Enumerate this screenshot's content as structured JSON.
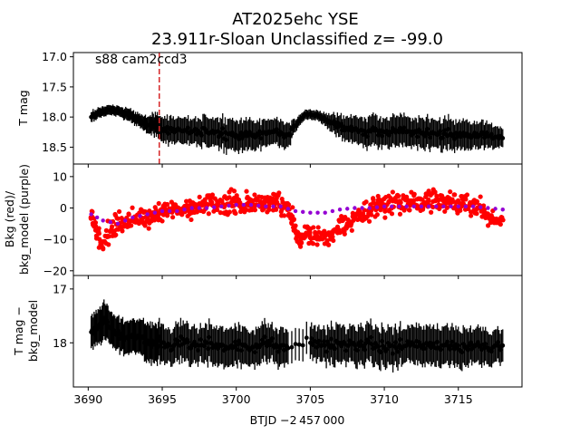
{
  "figure": {
    "title_line1": "AT2025ehc  YSE",
    "title_line2": "23.911r-Sloan Unclassified z= -99.0",
    "annotation": "s88 cam2ccd3",
    "shared_xlabel": "BTJD −2 457 000"
  },
  "chart_data": [
    {
      "type": "scatter",
      "panel": "top",
      "ylabel": "T mag",
      "y_inverted": true,
      "xlim": [
        3689.0,
        3719.3
      ],
      "ylim": [
        18.78,
        16.93
      ],
      "xticks": [
        3690,
        3695,
        3700,
        3705,
        3710,
        3715
      ],
      "yticks": [
        17.0,
        17.5,
        18.0,
        18.5
      ],
      "ytick_labels": [
        "17.0",
        "17.5",
        "18.0",
        "18.5"
      ],
      "vline": {
        "x": 3694.8,
        "color": "#d62728",
        "style": "dashed"
      },
      "series": [
        {
          "color": "#000000",
          "error_bars": true,
          "x": [
            3690.2,
            3690.6,
            3691.0,
            3691.4,
            3691.8,
            3692.2,
            3692.6,
            3693.0,
            3693.4,
            3693.8,
            3694.2,
            3694.6,
            3695.0,
            3695.5,
            3696.0,
            3696.5,
            3697.0,
            3697.5,
            3698.0,
            3698.5,
            3699.0,
            3699.5,
            3700.0,
            3700.5,
            3701.0,
            3701.5,
            3702.0,
            3702.5,
            3703.0,
            3703.5,
            3704.0,
            3704.5,
            3705.0,
            3705.5,
            3706.0,
            3706.5,
            3707.0,
            3707.5,
            3708.0,
            3708.5,
            3709.0,
            3709.5,
            3710.0,
            3710.5,
            3711.0,
            3711.5,
            3712.0,
            3712.5,
            3713.0,
            3713.5,
            3714.0,
            3714.5,
            3715.0,
            3715.5,
            3716.0,
            3716.5,
            3717.0,
            3717.5,
            3718.0
          ],
          "y": [
            18.0,
            17.95,
            17.9,
            17.88,
            17.9,
            17.92,
            17.95,
            18.0,
            18.05,
            18.1,
            18.12,
            18.15,
            18.2,
            18.2,
            18.22,
            18.22,
            18.25,
            18.25,
            18.25,
            18.27,
            18.28,
            18.28,
            18.3,
            18.3,
            18.3,
            18.3,
            18.28,
            18.25,
            18.25,
            18.3,
            18.15,
            18.0,
            17.95,
            17.97,
            18.05,
            18.1,
            18.15,
            18.18,
            18.2,
            18.22,
            18.22,
            18.22,
            18.25,
            18.25,
            18.25,
            18.25,
            18.27,
            18.27,
            18.28,
            18.28,
            18.28,
            18.28,
            18.3,
            18.3,
            18.3,
            18.3,
            18.32,
            18.33,
            18.35
          ],
          "yerr": [
            0.08,
            0.08,
            0.08,
            0.08,
            0.08,
            0.08,
            0.1,
            0.1,
            0.1,
            0.12,
            0.15,
            0.18,
            0.2,
            0.22,
            0.2,
            0.22,
            0.2,
            0.22,
            0.25,
            0.22,
            0.25,
            0.25,
            0.25,
            0.25,
            0.25,
            0.22,
            0.22,
            0.2,
            0.22,
            0.2,
            0.1,
            0.08,
            0.08,
            0.08,
            0.1,
            0.15,
            0.18,
            0.2,
            0.22,
            0.22,
            0.25,
            0.25,
            0.22,
            0.25,
            0.25,
            0.25,
            0.22,
            0.25,
            0.25,
            0.22,
            0.25,
            0.25,
            0.22,
            0.25,
            0.2,
            0.22,
            0.2,
            0.18,
            0.15
          ]
        }
      ]
    },
    {
      "type": "scatter",
      "panel": "middle",
      "ylabel_line1": "Bkg (red)/",
      "ylabel_line2": "bkg_model (purple)",
      "xlim": [
        3689.0,
        3719.3
      ],
      "ylim": [
        -21.5,
        14
      ],
      "yticks": [
        10,
        0,
        -10,
        -20
      ],
      "ytick_labels": [
        "10",
        "0",
        "−10",
        "−20"
      ],
      "series": [
        {
          "color": "#ff0000",
          "x": [
            3690.2,
            3690.6,
            3691.0,
            3691.5,
            3692.0,
            3692.5,
            3693.0,
            3693.5,
            3694.0,
            3694.5,
            3695.0,
            3695.5,
            3696.0,
            3696.5,
            3697.0,
            3697.5,
            3698.0,
            3698.5,
            3699.0,
            3699.5,
            3700.0,
            3700.5,
            3701.0,
            3701.5,
            3702.0,
            3702.5,
            3703.0,
            3703.5,
            3703.8,
            3704.2,
            3704.6,
            3705.0,
            3705.5,
            3706.0,
            3706.5,
            3707.0,
            3707.5,
            3708.0,
            3708.5,
            3709.0,
            3709.5,
            3710.0,
            3710.5,
            3711.0,
            3711.5,
            3712.0,
            3712.5,
            3713.0,
            3713.5,
            3714.0,
            3714.5,
            3715.0,
            3715.5,
            3716.0,
            3716.5,
            3717.0,
            3717.5,
            3718.0
          ],
          "y": [
            -2,
            -8,
            -12,
            -8,
            -5,
            -6,
            -4,
            -3,
            -3,
            -2,
            -2,
            -1,
            0,
            -1,
            0,
            0,
            1,
            1,
            1,
            2,
            2,
            1,
            2,
            1,
            1,
            2,
            1,
            0,
            -4,
            -10,
            -8,
            -8,
            -9,
            -10,
            -9,
            -6,
            -5,
            -3,
            -2,
            -1,
            0,
            1,
            1,
            2,
            1,
            2,
            1,
            2,
            2,
            1,
            2,
            1,
            2,
            1,
            0,
            -2,
            -5,
            -3
          ],
          "spread": [
            4,
            8,
            6,
            5,
            5,
            5,
            5,
            5,
            5,
            5,
            5,
            5,
            5,
            5,
            5,
            5,
            5,
            5,
            5,
            5,
            5,
            5,
            5,
            5,
            5,
            5,
            5,
            5,
            6,
            5,
            5,
            5,
            5,
            5,
            5,
            5,
            5,
            5,
            5,
            5,
            5,
            5,
            5,
            5,
            5,
            5,
            5,
            5,
            5,
            5,
            5,
            5,
            5,
            5,
            5,
            4,
            4,
            3
          ]
        },
        {
          "color": "#9400d3",
          "x": [
            3690.2,
            3691.0,
            3692.0,
            3693.0,
            3694.0,
            3695.0,
            3696.0,
            3697.0,
            3698.0,
            3699.0,
            3700.0,
            3701.0,
            3702.0,
            3703.0,
            3704.0,
            3705.0,
            3706.0,
            3707.0,
            3708.0,
            3709.0,
            3710.0,
            3711.0,
            3712.0,
            3713.0,
            3714.0,
            3715.0,
            3716.0,
            3717.0,
            3718.0
          ],
          "y": [
            -2,
            -4,
            -5,
            -3,
            -2,
            -1,
            -1,
            0,
            0,
            0.5,
            1,
            1,
            0.5,
            0.5,
            -1,
            -1.5,
            -1.5,
            -0.5,
            0,
            0,
            0.5,
            0.5,
            0.5,
            0.5,
            0.5,
            0.5,
            0.5,
            0,
            -0.5
          ]
        }
      ]
    },
    {
      "type": "scatter",
      "panel": "bottom",
      "ylabel_line1": "T mag −",
      "ylabel_line2": "bkg_model",
      "y_inverted": true,
      "xlim": [
        3689.0,
        3719.3
      ],
      "ylim": [
        18.82,
        16.75
      ],
      "xticks": [
        3690,
        3695,
        3700,
        3705,
        3710,
        3715
      ],
      "xtick_labels": [
        "3690",
        "3695",
        "3700",
        "3705",
        "3710",
        "3715"
      ],
      "yticks": [
        17,
        18
      ],
      "ytick_labels": [
        "17",
        "18"
      ],
      "series": [
        {
          "color": "#000000",
          "error_bars": true,
          "x": [
            3690.2,
            3690.6,
            3691.0,
            3691.4,
            3691.8,
            3692.2,
            3692.6,
            3693.0,
            3693.4,
            3693.8,
            3694.2,
            3694.6,
            3695.0,
            3695.5,
            3696.0,
            3696.5,
            3697.0,
            3697.5,
            3698.0,
            3698.5,
            3699.0,
            3699.5,
            3700.0,
            3700.5,
            3701.0,
            3701.5,
            3702.0,
            3702.5,
            3703.0,
            3703.5,
            3705.0,
            3705.5,
            3706.0,
            3706.5,
            3707.0,
            3707.5,
            3708.0,
            3708.5,
            3709.0,
            3709.5,
            3710.0,
            3710.5,
            3711.0,
            3711.5,
            3712.0,
            3712.5,
            3713.0,
            3713.5,
            3714.0,
            3714.5,
            3715.0,
            3715.5,
            3716.0,
            3716.5,
            3717.0,
            3717.5,
            3718.0
          ],
          "y": [
            17.8,
            17.75,
            17.6,
            17.7,
            17.8,
            17.85,
            17.9,
            17.85,
            17.9,
            18.0,
            17.95,
            18.0,
            18.0,
            18.05,
            18.0,
            18.0,
            18.05,
            18.05,
            18.0,
            18.05,
            18.05,
            18.1,
            18.05,
            18.05,
            18.1,
            18.05,
            18.0,
            18.05,
            18.05,
            18.1,
            18.0,
            18.0,
            18.05,
            18.05,
            18.0,
            18.05,
            18.05,
            18.05,
            18.0,
            18.05,
            18.1,
            18.05,
            18.05,
            18.05,
            18.05,
            18.05,
            18.05,
            18.1,
            18.05,
            18.05,
            18.05,
            18.1,
            18.05,
            18.05,
            18.1,
            18.05,
            18.05
          ],
          "yerr": [
            0.3,
            0.3,
            0.35,
            0.3,
            0.3,
            0.3,
            0.3,
            0.3,
            0.3,
            0.35,
            0.35,
            0.35,
            0.35,
            0.3,
            0.35,
            0.35,
            0.35,
            0.3,
            0.35,
            0.35,
            0.35,
            0.35,
            0.35,
            0.35,
            0.3,
            0.35,
            0.35,
            0.3,
            0.35,
            0.3,
            0.3,
            0.3,
            0.3,
            0.35,
            0.35,
            0.3,
            0.35,
            0.35,
            0.35,
            0.35,
            0.35,
            0.35,
            0.35,
            0.3,
            0.35,
            0.35,
            0.35,
            0.35,
            0.35,
            0.35,
            0.35,
            0.35,
            0.3,
            0.35,
            0.3,
            0.3,
            0.3
          ]
        }
      ]
    }
  ]
}
